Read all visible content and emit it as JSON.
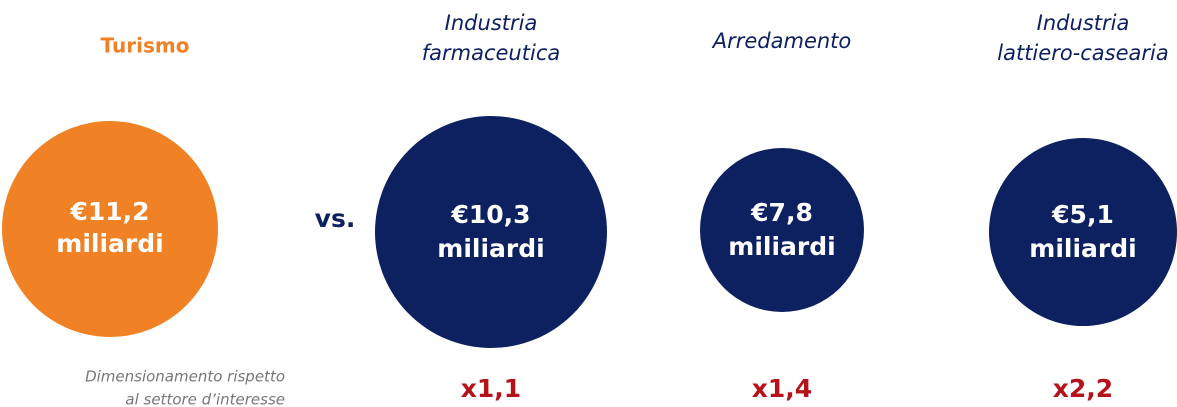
{
  "highlight": {
    "label": [
      "Turismo"
    ],
    "value": [
      "€11,2",
      "miliardi"
    ],
    "note": [
      "Dimensionamento rispetto",
      "al settore d’interesse"
    ]
  },
  "separator": "vs.",
  "comparisons": [
    {
      "label": [
        "Industria",
        "farmaceutica"
      ],
      "value": [
        "€10,3",
        "miliardi"
      ],
      "multiplier": "x1,1"
    },
    {
      "label": [
        "Arredamento"
      ],
      "value": [
        "€7,8",
        "miliardi"
      ],
      "multiplier": "x1,4"
    },
    {
      "label": [
        "Industria",
        "lattiero-casearia"
      ],
      "value": [
        "€5,1",
        "miliardi"
      ],
      "multiplier": "x2,2"
    }
  ]
}
